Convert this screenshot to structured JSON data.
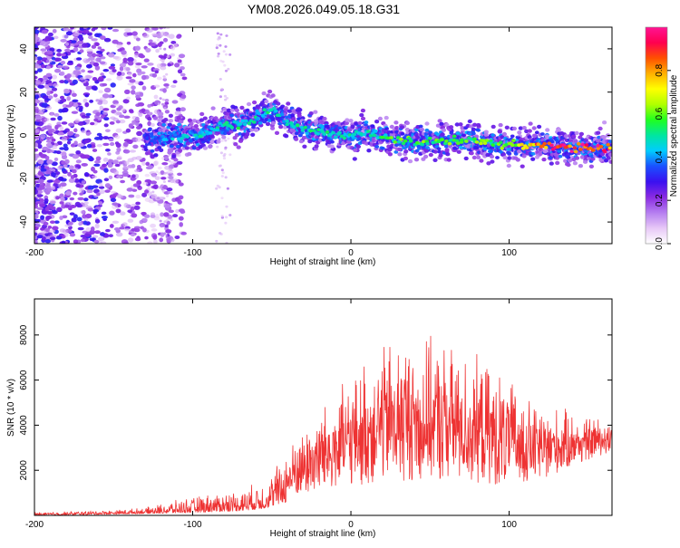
{
  "title": "YM08.2026.049.05.18.G31",
  "chart_data": [
    {
      "type": "heatmap",
      "name": "spectrogram",
      "xlabel": "Height of straight line (km)",
      "ylabel": "Frequency (Hz)",
      "xlim": [
        -200,
        165
      ],
      "ylim": [
        -50,
        50
      ],
      "xticks": [
        -200,
        -100,
        0,
        100
      ],
      "yticks": [
        -40,
        -20,
        0,
        20,
        40
      ],
      "colorbar": {
        "label": "Normalized spectral amplitude",
        "range": [
          0.0,
          1.0
        ],
        "ticks": [
          0.0,
          0.2,
          0.4,
          0.6,
          0.8
        ],
        "tick_labels": [
          "0.0",
          "0.2",
          "0.4",
          "0.6",
          "0.8"
        ],
        "colors": [
          "#ffffff",
          "#e7c8f7",
          "#b57ef0",
          "#8a2be2",
          "#3a10f0",
          "#1a50ff",
          "#00ccff",
          "#00e6a0",
          "#20ff20",
          "#b0ff00",
          "#ffff00",
          "#ffb000",
          "#ff5000",
          "#ff0050",
          "#ff1493"
        ]
      },
      "ridge": {
        "x": [
          -130,
          -120,
          -110,
          -100,
          -90,
          -80,
          -70,
          -60,
          -50,
          -45,
          -40,
          -30,
          -20,
          -10,
          0,
          10,
          20,
          30,
          40,
          50,
          60,
          70,
          80,
          90,
          100,
          110,
          120,
          130,
          140,
          150,
          160,
          165
        ],
        "y": [
          -2,
          -1,
          0,
          -1,
          2,
          5,
          5,
          8,
          12,
          10,
          6,
          3,
          2,
          1,
          0,
          1,
          0,
          -2,
          -3,
          -3,
          -2,
          -2,
          -3,
          -4,
          -4,
          -5,
          -5,
          -5,
          -6,
          -6,
          -6,
          -6
        ],
        "amplitude": [
          0.35,
          0.4,
          0.45,
          0.45,
          0.5,
          0.5,
          0.55,
          0.5,
          0.55,
          0.5,
          0.5,
          0.5,
          0.52,
          0.5,
          0.5,
          0.52,
          0.55,
          0.6,
          0.6,
          0.6,
          0.62,
          0.6,
          0.62,
          0.6,
          0.65,
          0.8,
          0.9,
          0.95,
          1.0,
          1.0,
          1.0,
          0.9
        ]
      }
    },
    {
      "type": "line",
      "name": "snr",
      "xlabel": "Height of straight line (km)",
      "ylabel": "SNR (10 * v/v)",
      "xlim": [
        -200,
        165
      ],
      "ylim": [
        0,
        9600
      ],
      "xticks": [
        -200,
        -100,
        0,
        100
      ],
      "yticks": [
        2000,
        4000,
        6000,
        8000
      ],
      "color": "#ee3333",
      "envelope": {
        "x": [
          -200,
          -150,
          -130,
          -110,
          -90,
          -70,
          -55,
          -45,
          -35,
          -25,
          -15,
          -5,
          5,
          15,
          25,
          35,
          45,
          55,
          65,
          75,
          85,
          95,
          105,
          115,
          125,
          135,
          145,
          155,
          165
        ],
        "y": [
          150,
          250,
          350,
          700,
          1000,
          1200,
          1600,
          2600,
          3600,
          4600,
          5300,
          6000,
          6600,
          7800,
          8200,
          8200,
          8000,
          8000,
          7700,
          7400,
          7000,
          6500,
          6000,
          5300,
          5000,
          4800,
          4600,
          4500,
          4400
        ],
        "floor": [
          0,
          50,
          80,
          100,
          150,
          200,
          300,
          500,
          700,
          900,
          1100,
          1200,
          1300,
          1400,
          1500,
          1500,
          1500,
          1500,
          1500,
          1400,
          1400,
          1300,
          1300,
          1500,
          1700,
          2000,
          2300,
          2600,
          2800
        ]
      }
    }
  ]
}
